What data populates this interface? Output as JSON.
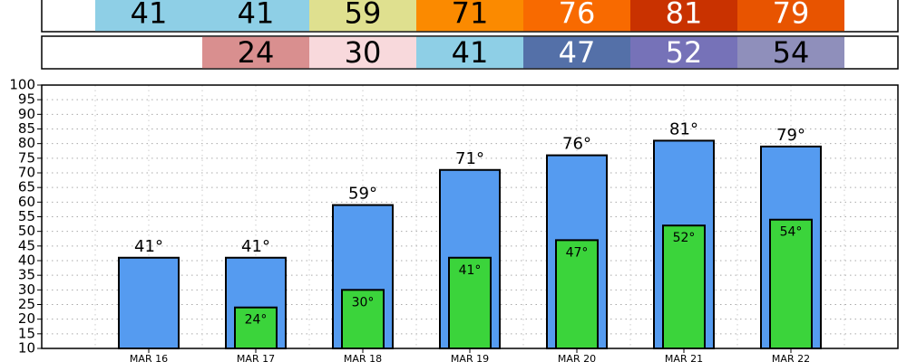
{
  "chart_data": {
    "type": "bar",
    "categories": [
      "MAR 16",
      "MAR 17",
      "MAR 18",
      "MAR 19",
      "MAR 20",
      "MAR 21",
      "MAR 22"
    ],
    "series": [
      {
        "color": "#559bf0",
        "values": [
          41,
          41,
          59,
          71,
          76,
          81,
          79
        ],
        "value_labels": [
          "41°",
          "41°",
          "59°",
          "71°",
          "76°",
          "81°",
          "79°"
        ],
        "cell_colors": [
          "#8ecfe6",
          "#8ecfe6",
          "#dfe08f",
          "#fb8a00",
          "#f86a00",
          "#c93200",
          "#e85400"
        ]
      },
      {
        "color": "#3bd43b",
        "values": [
          null,
          24,
          30,
          41,
          47,
          52,
          54
        ],
        "value_labels": [
          null,
          "24°",
          "30°",
          "41°",
          "47°",
          "52°",
          "54°"
        ],
        "cell_colors": [
          null,
          "#d98f8f",
          "#f8d9dc",
          "#8ecfe6",
          "#5470a8",
          "#7672b8",
          "#8f8fbb"
        ]
      }
    ],
    "ylim": [
      10,
      100
    ],
    "yticks": [
      10,
      15,
      20,
      25,
      30,
      35,
      40,
      45,
      50,
      55,
      60,
      65,
      70,
      75,
      80,
      85,
      90,
      95,
      100
    ],
    "grid": true
  }
}
